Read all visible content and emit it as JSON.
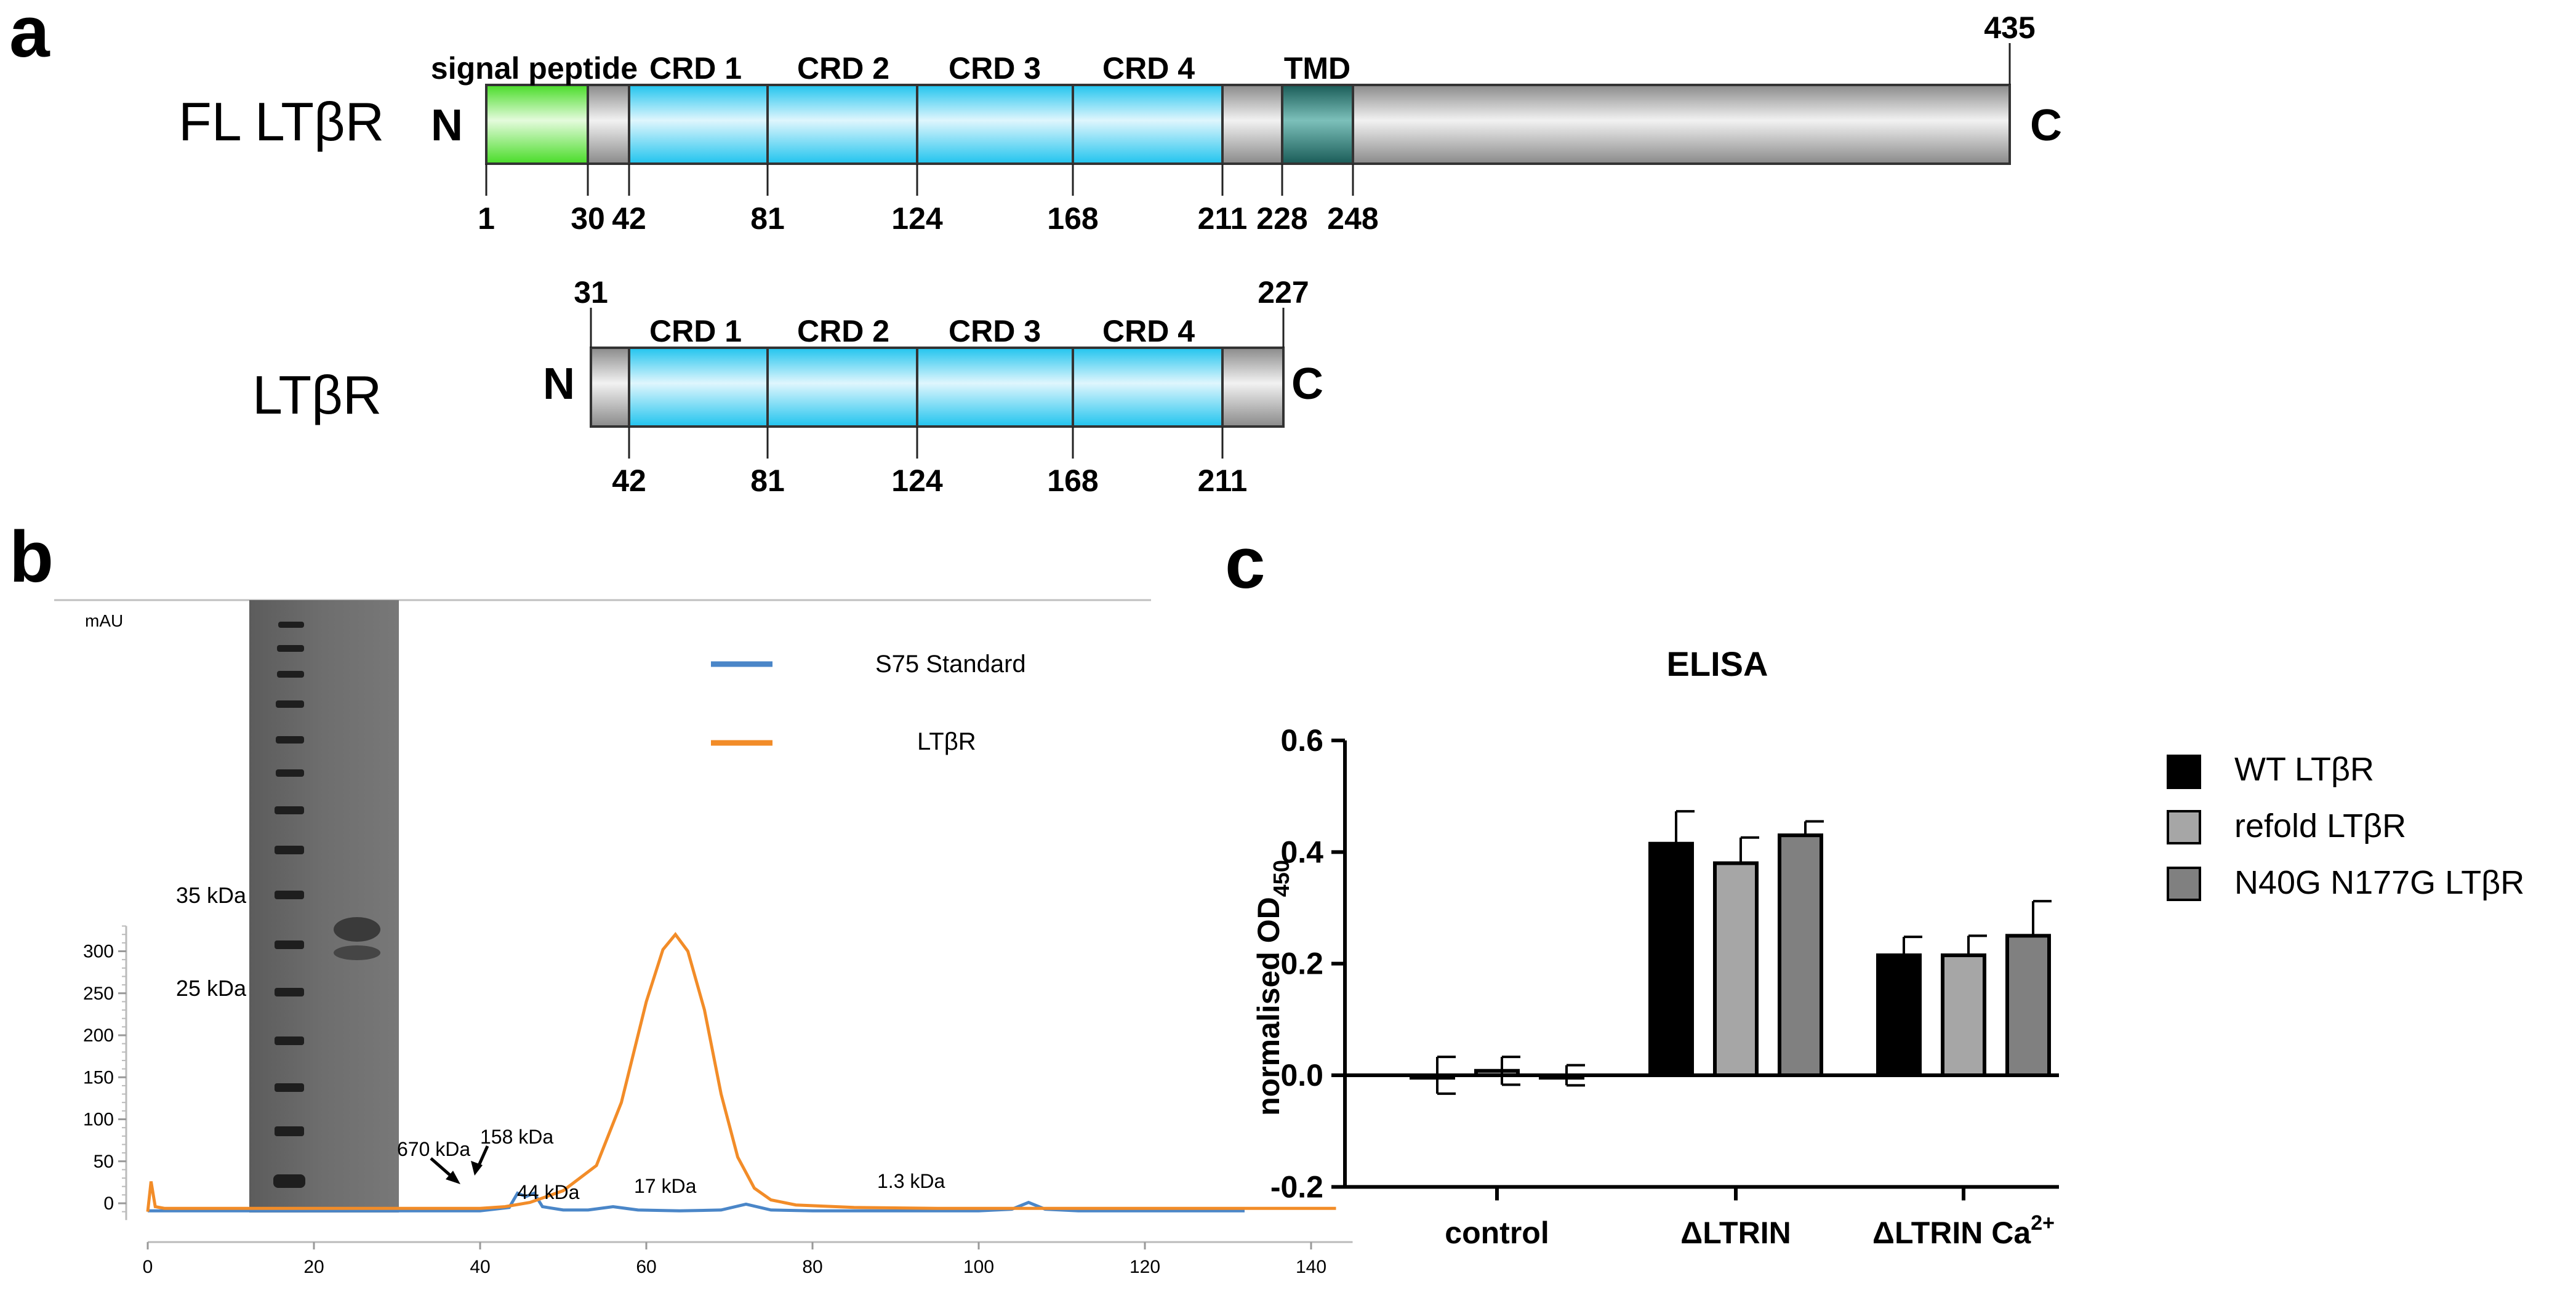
{
  "panel_labels": {
    "a": "a",
    "b": "b",
    "c": "c"
  },
  "panel_a": {
    "fl": {
      "name": "FL LTβR",
      "n_term": "N",
      "c_term": "C",
      "end_label": "435",
      "domain_labels": [
        "signal peptide",
        "CRD 1",
        "CRD 2",
        "CRD 3",
        "CRD 4",
        "TMD"
      ],
      "positions": [
        "1",
        "30",
        "42",
        "81",
        "124",
        "168",
        "211",
        "228",
        "248"
      ]
    },
    "ecd": {
      "name": "LTβR",
      "n_term": "N",
      "c_term": "C",
      "start_label": "31",
      "end_label": "227",
      "domain_labels": [
        "CRD 1",
        "CRD 2",
        "CRD 3",
        "CRD 4"
      ],
      "positions": [
        "42",
        "81",
        "124",
        "168",
        "211"
      ]
    },
    "colors": {
      "signal": "#4ddd2a",
      "crd": "#27c7ef",
      "tmd": "#1d6460",
      "body": "#c0c0c0"
    }
  },
  "panel_b": {
    "y_unit": "mAU",
    "gel_markers": [
      "35 kDa",
      "25 kDa"
    ],
    "peak_annotations": [
      "670 kDa",
      "158 kDa",
      "44 kDa",
      "17 kDa",
      "1.3 kDa"
    ],
    "chart_data": {
      "type": "line",
      "xlim": [
        0,
        145
      ],
      "ylim": [
        -20,
        340
      ],
      "x_ticks": [
        "0",
        "20",
        "40",
        "60",
        "80",
        "100",
        "120",
        "140"
      ],
      "y_ticks": [
        "0",
        "50",
        "100",
        "150",
        "200",
        "250",
        "300"
      ],
      "series": [
        {
          "name": "S75 Standard",
          "color": "#4a86c8",
          "x": [
            0,
            40,
            43.5,
            44.5,
            45.5,
            46.5,
            47.5,
            50,
            53,
            56,
            59,
            64,
            69,
            72,
            75,
            80,
            100,
            104,
            106,
            108,
            112,
            132
          ],
          "y": [
            -9,
            -9,
            -5,
            12,
            8,
            12,
            -4,
            -8,
            -8,
            -4,
            -8,
            -9,
            -8,
            -1,
            -8,
            -9,
            -9,
            -7,
            1,
            -7,
            -9,
            -9
          ]
        },
        {
          "name": "LTβR",
          "color": "#f28c28",
          "x": [
            0,
            0.4,
            0.9,
            2,
            20,
            40,
            43,
            46,
            50,
            54,
            57,
            60,
            62,
            63.5,
            65,
            67,
            69,
            71,
            73,
            75,
            78,
            85,
            95,
            143
          ],
          "y": [
            -10,
            26,
            -4,
            -6,
            -6,
            -6,
            -4,
            1,
            15,
            45,
            120,
            240,
            302,
            320,
            300,
            230,
            130,
            55,
            18,
            4,
            -2,
            -5,
            -6,
            -6
          ]
        }
      ]
    }
  },
  "panel_c": {
    "chart_data": {
      "type": "bar",
      "title": "ELISA",
      "ylabel_main": "normalised OD",
      "ylabel_sub": "450",
      "ylim": [
        -0.2,
        0.6
      ],
      "y_ticks": [
        "-0.2",
        "0.0",
        "0.2",
        "0.4",
        "0.6"
      ],
      "categories": [
        "control",
        "ΔLTRIN",
        "ΔLTRIN Ca"
      ],
      "category_superscripts": [
        "",
        "",
        "2+"
      ],
      "series": [
        {
          "name": "WT LTβR",
          "color": "#000000",
          "values": [
            0.0,
            0.415,
            0.215
          ],
          "errors": [
            0.033,
            0.058,
            0.033
          ]
        },
        {
          "name": "refold LTβR",
          "color": "#a6a6a6",
          "values": [
            0.008,
            0.38,
            0.215
          ],
          "errors": [
            0.025,
            0.046,
            0.035
          ]
        },
        {
          "name": "N40G N177G LTβR",
          "color": "#808080",
          "values": [
            0.0,
            0.43,
            0.25
          ],
          "errors": [
            0.018,
            0.025,
            0.062
          ]
        }
      ]
    }
  }
}
